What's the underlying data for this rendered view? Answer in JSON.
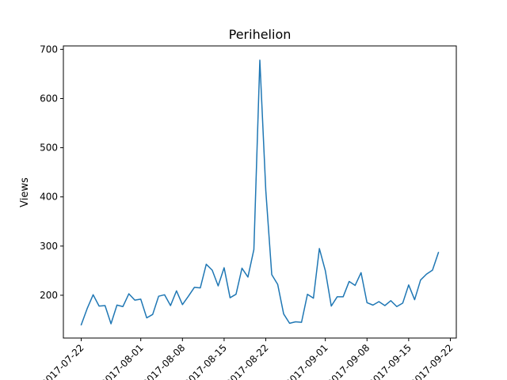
{
  "chart_data": {
    "type": "line",
    "title": "Perihelion",
    "xlabel": "",
    "ylabel": "Views",
    "x_tick_labels": [
      "2017-07-22",
      "2017-08-01",
      "2017-08-08",
      "2017-08-15",
      "2017-08-22",
      "2017-09-01",
      "2017-09-08",
      "2017-09-15",
      "2017-09-22"
    ],
    "y_ticks": [
      200,
      300,
      400,
      500,
      600,
      700
    ],
    "xlim": [
      "2017-07-19",
      "2017-09-23"
    ],
    "ylim": [
      113,
      707
    ],
    "grid": false,
    "series": [
      {
        "color": "#1f77b4",
        "x": [
          "2017-07-22",
          "2017-07-23",
          "2017-07-24",
          "2017-07-25",
          "2017-07-26",
          "2017-07-27",
          "2017-07-28",
          "2017-07-29",
          "2017-07-30",
          "2017-07-31",
          "2017-08-01",
          "2017-08-02",
          "2017-08-03",
          "2017-08-04",
          "2017-08-05",
          "2017-08-06",
          "2017-08-07",
          "2017-08-08",
          "2017-08-09",
          "2017-08-10",
          "2017-08-11",
          "2017-08-12",
          "2017-08-13",
          "2017-08-14",
          "2017-08-15",
          "2017-08-16",
          "2017-08-17",
          "2017-08-18",
          "2017-08-19",
          "2017-08-20",
          "2017-08-21",
          "2017-08-22",
          "2017-08-23",
          "2017-08-24",
          "2017-08-25",
          "2017-08-26",
          "2017-08-27",
          "2017-08-28",
          "2017-08-29",
          "2017-08-30",
          "2017-08-31",
          "2017-09-01",
          "2017-09-02",
          "2017-09-03",
          "2017-09-04",
          "2017-09-05",
          "2017-09-06",
          "2017-09-07",
          "2017-09-08",
          "2017-09-09",
          "2017-09-10",
          "2017-09-11",
          "2017-09-12",
          "2017-09-13",
          "2017-09-14",
          "2017-09-15",
          "2017-09-16",
          "2017-09-17",
          "2017-09-18",
          "2017-09-19",
          "2017-09-20"
        ],
        "y": [
          140,
          173,
          201,
          178,
          179,
          142,
          180,
          177,
          203,
          190,
          192,
          154,
          161,
          198,
          201,
          179,
          209,
          181,
          198,
          216,
          215,
          263,
          251,
          219,
          256,
          195,
          202,
          255,
          237,
          293,
          678,
          413,
          242,
          222,
          162,
          143,
          146,
          145,
          202,
          194,
          295,
          250,
          178,
          197,
          197,
          228,
          220,
          246,
          185,
          180,
          187,
          179,
          189,
          177,
          184,
          221,
          191,
          231,
          243,
          251,
          287
        ]
      }
    ]
  }
}
